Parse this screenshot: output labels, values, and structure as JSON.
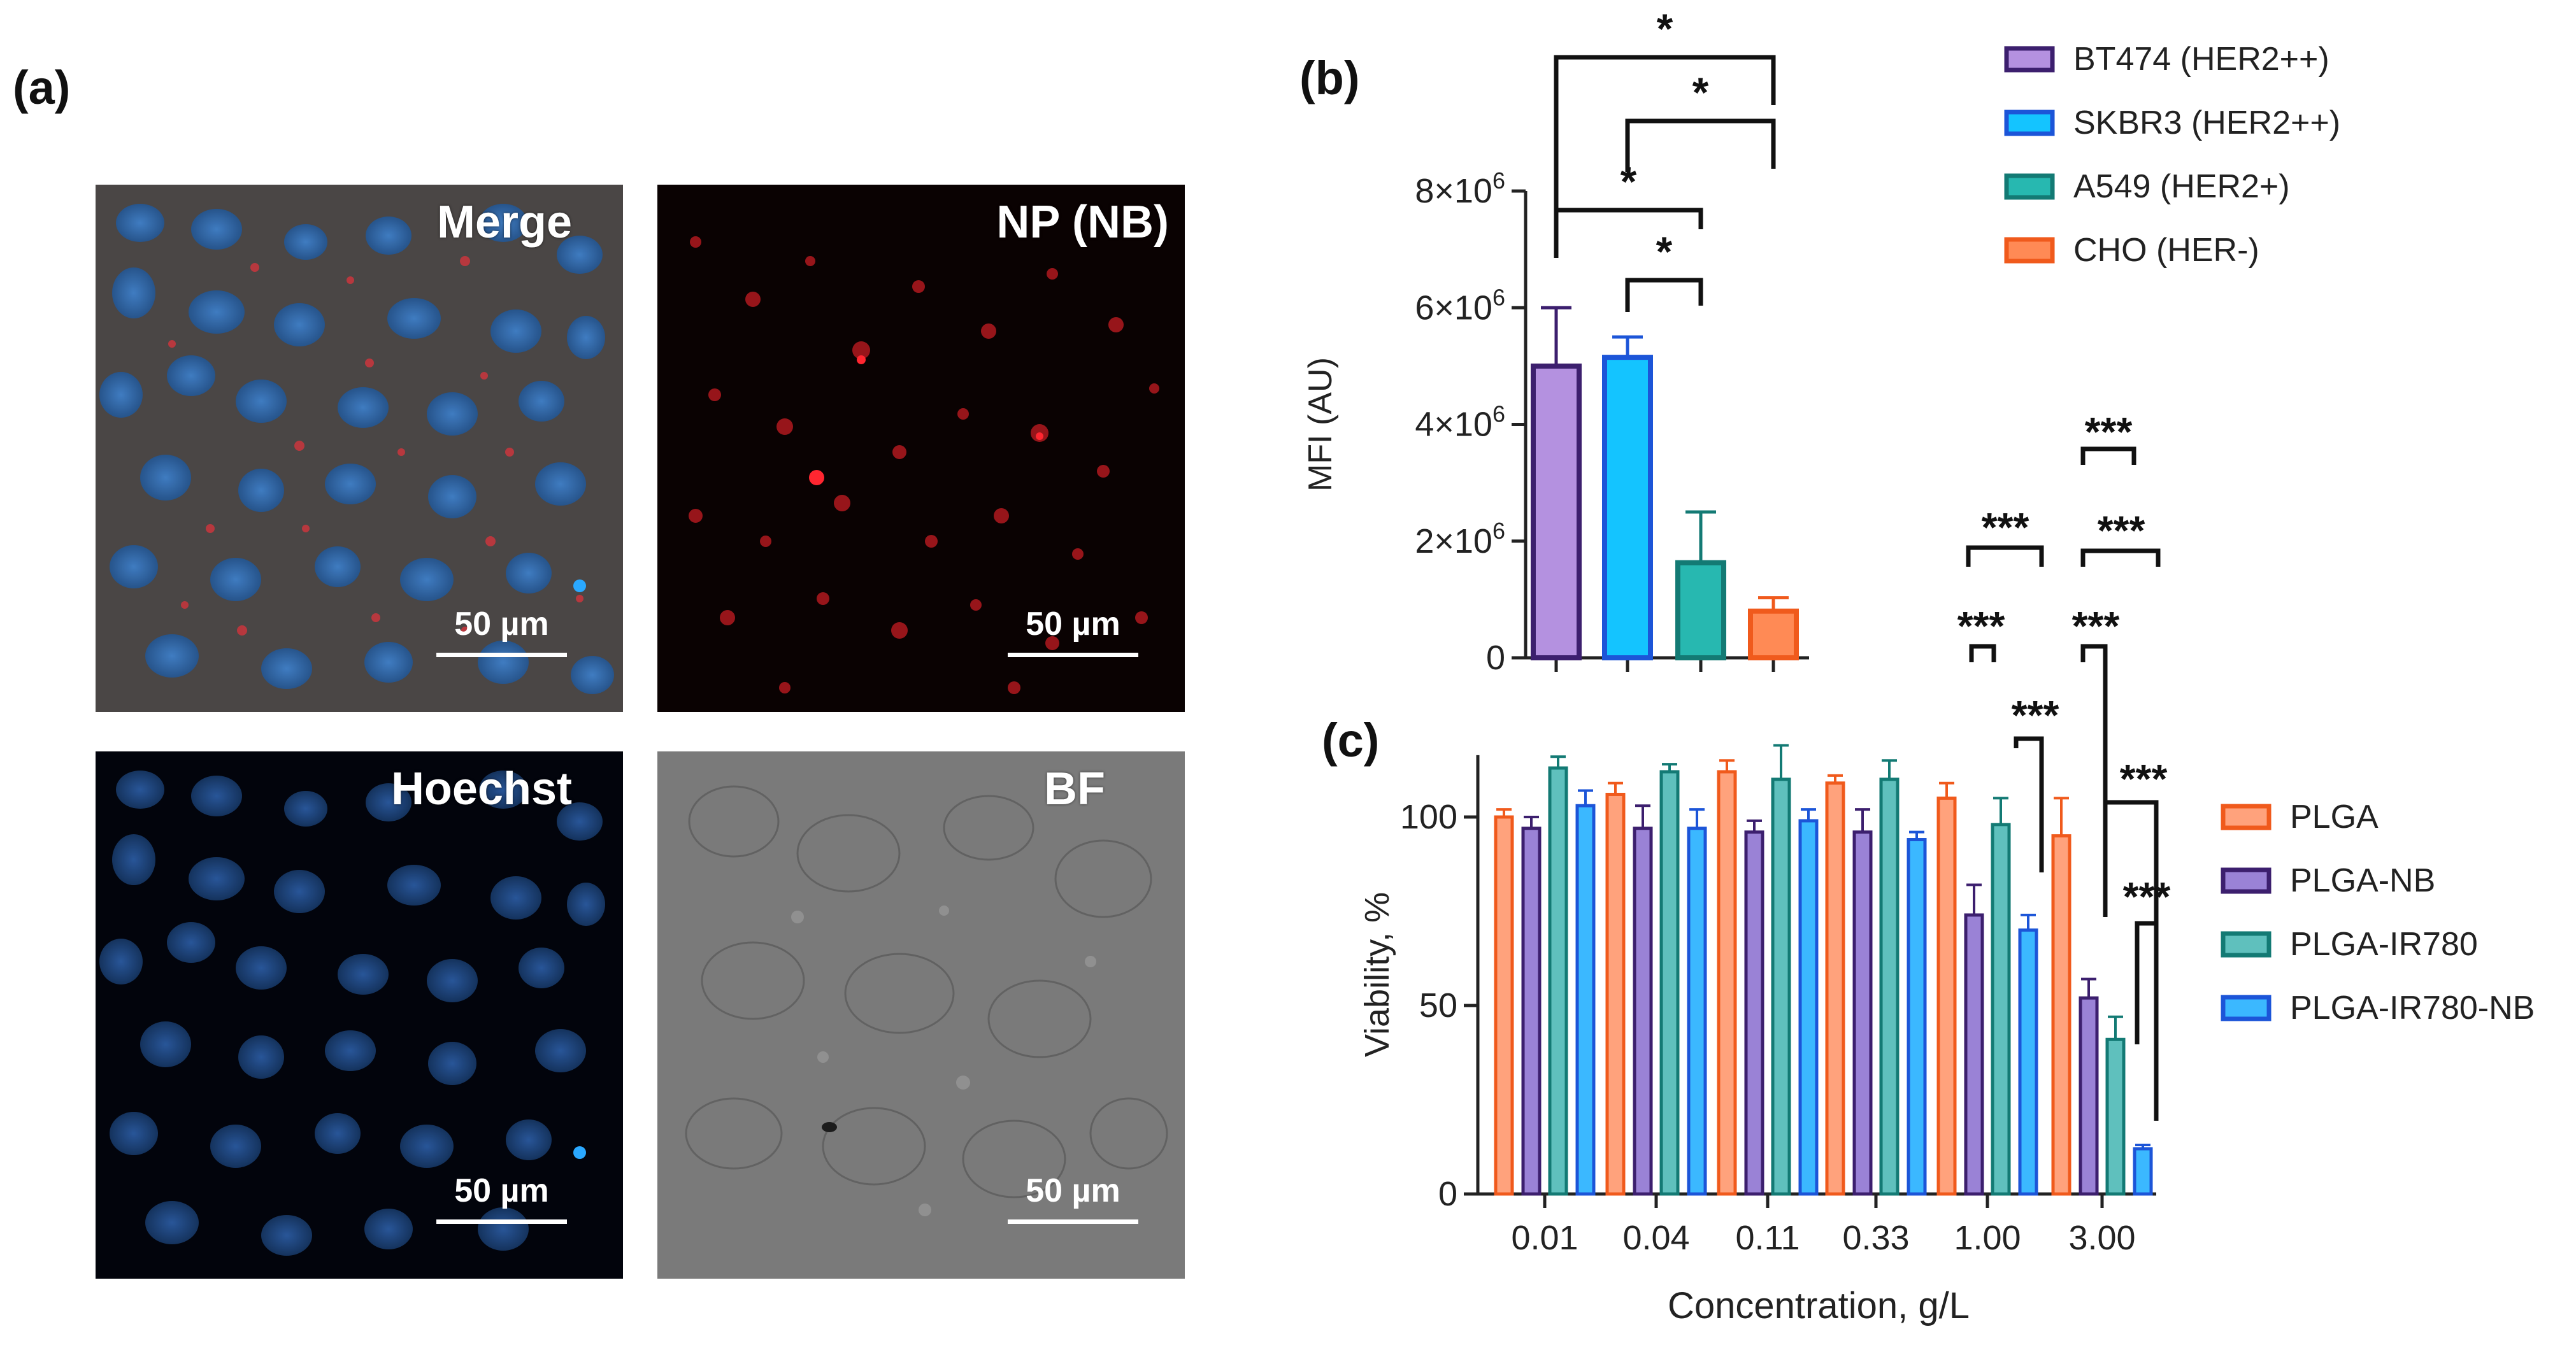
{
  "panels": {
    "a": "(a)",
    "b": "(b)",
    "c": "(c)"
  },
  "micrographs": [
    {
      "label": "Merge",
      "scale": "50 µm",
      "scale_shown": true
    },
    {
      "label": "NP (NB)",
      "scale": "50 µm",
      "scale_shown": true
    },
    {
      "label": "Hoechst",
      "scale": "50 µm",
      "scale_shown": true
    },
    {
      "label": "BF",
      "scale": "50 µm",
      "scale_shown": true
    }
  ],
  "colors": {
    "bt474": "#b491e0",
    "bt474_edge": "#3c1f6e",
    "skbr3": "#14c4ff",
    "skbr3_edge": "#1c55d8",
    "a549": "#27b8b0",
    "a549_edge": "#137a74",
    "cho": "#ff8a55",
    "cho_edge": "#f05a1c",
    "plga": "#ffa27c",
    "plga_edge": "#f05a1c",
    "plga_nb": "#9a82d6",
    "plga_nb_edge": "#3c1f6e",
    "plga_ir780": "#5fc0bd",
    "plga_ir780_edge": "#137a74",
    "plga_ir780_nb": "#3bb8ff",
    "plga_ir780_nb_edge": "#1c55d8"
  },
  "chart_data": [
    {
      "type": "bar",
      "title": "",
      "ylabel": "MFI (AU)",
      "xlabel": "",
      "ylim": [
        0,
        8000000
      ],
      "yticks": [
        {
          "value": 0,
          "label": "0"
        },
        {
          "value": 2000000,
          "label": "2×10",
          "exp": "6"
        },
        {
          "value": 4000000,
          "label": "4×10",
          "exp": "6"
        },
        {
          "value": 6000000,
          "label": "6×10",
          "exp": "6"
        },
        {
          "value": 8000000,
          "label": "8×10",
          "exp": "6"
        }
      ],
      "categories": [
        "BT474 (HER2++)",
        "SKBR3 (HER2++)",
        "A549 (HER2+)",
        "CHO (HER-)"
      ],
      "values": [
        5000000,
        5150000,
        1630000,
        800000
      ],
      "errors": [
        1000000,
        350000,
        870000,
        230000
      ],
      "significance": [
        {
          "from": 0,
          "to": 3,
          "label": "*"
        },
        {
          "from": 1,
          "to": 3,
          "label": "*"
        },
        {
          "from": 0,
          "to": 2,
          "label": "*"
        },
        {
          "from": 1,
          "to": 2,
          "label": "*"
        }
      ]
    },
    {
      "type": "bar",
      "title": "",
      "ylabel": "Viability, %",
      "xlabel": "Concentration, g/L",
      "ylim": [
        0,
        120
      ],
      "yticks": [
        {
          "value": 0,
          "label": "0"
        },
        {
          "value": 50,
          "label": "50"
        },
        {
          "value": 100,
          "label": "100"
        }
      ],
      "categories": [
        "0.01",
        "0.04",
        "0.11",
        "0.33",
        "1.00",
        "3.00"
      ],
      "series": [
        {
          "name": "PLGA",
          "values": [
            100,
            106,
            112,
            109,
            105,
            95
          ],
          "errors": [
            2,
            3,
            3,
            2,
            4,
            10
          ]
        },
        {
          "name": "PLGA-NB",
          "values": [
            97,
            97,
            96,
            96,
            74,
            52
          ],
          "errors": [
            3,
            6,
            3,
            6,
            8,
            5
          ]
        },
        {
          "name": "PLGA-IR780",
          "values": [
            113,
            112,
            110,
            110,
            98,
            41
          ],
          "errors": [
            3,
            2,
            9,
            5,
            7,
            6
          ]
        },
        {
          "name": "PLGA-IR780-NB",
          "values": [
            103,
            97,
            99,
            94,
            70,
            12
          ],
          "errors": [
            4,
            5,
            3,
            2,
            4,
            1
          ]
        }
      ],
      "significance": [
        {
          "label": "***",
          "y": 310
        },
        {
          "label": "***",
          "y": 270
        },
        {
          "label": "***",
          "y": 200
        },
        {
          "label": "***",
          "y": 160
        },
        {
          "label": "***",
          "y": 150
        },
        {
          "label": "***",
          "y": 125
        },
        {
          "label": "***",
          "y": 92
        },
        {
          "label": "***",
          "y": 62
        }
      ]
    }
  ]
}
